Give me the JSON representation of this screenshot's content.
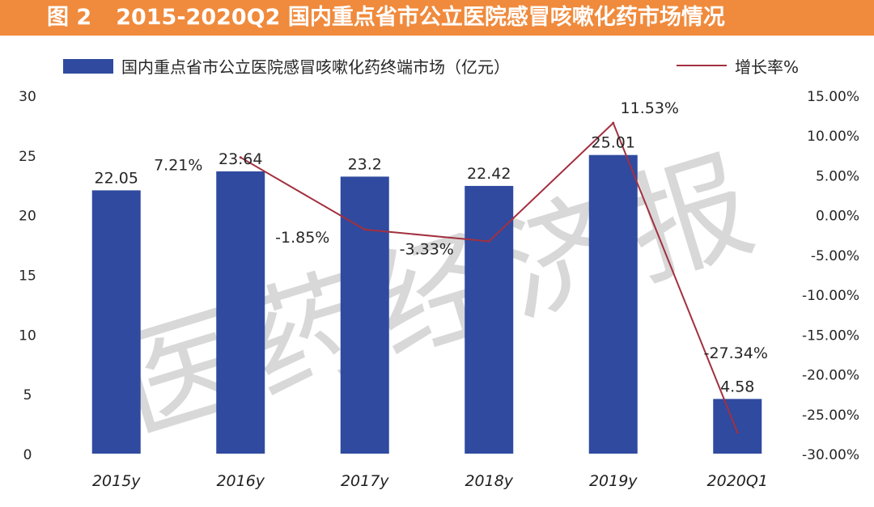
{
  "header": {
    "figure_label": "图 2",
    "title": "2015-2020Q2 国内重点省市公立医院感冒咳嗽化药市场情况"
  },
  "watermark": "医药经济报",
  "colors": {
    "title_bg": "#f08a3c",
    "bar": "#2f4a9f",
    "line": "#a3303f"
  },
  "chart_data": {
    "type": "bar",
    "categories": [
      "2015y",
      "2016y",
      "2017y",
      "2018y",
      "2019y",
      "2020Q1"
    ],
    "series": [
      {
        "name": "国内重点省市公立医院感冒咳嗽化药终端市场（亿元）",
        "type": "bar",
        "axis": "left",
        "values": [
          22.05,
          23.64,
          23.2,
          22.42,
          25.01,
          4.58
        ],
        "labels": [
          "22.05",
          "23.64",
          "23.2",
          "22.42",
          "25.01",
          "4.58"
        ]
      },
      {
        "name": "增长率%",
        "type": "line",
        "axis": "right",
        "values": [
          null,
          7.21,
          -1.85,
          -3.33,
          11.53,
          -27.34
        ],
        "labels": [
          "",
          "7.21%",
          "-1.85%",
          "-3.33%",
          "11.53%",
          "-27.34%"
        ]
      }
    ],
    "y_left": {
      "range": [
        0,
        30
      ],
      "ticks": [
        "0",
        "5",
        "10",
        "15",
        "20",
        "25",
        "30"
      ]
    },
    "y_right": {
      "range": [
        -30,
        15
      ],
      "ticks": [
        "-30.00%",
        "-25.00%",
        "-20.00%",
        "-15.00%",
        "-10.00%",
        "-5.00%",
        "0.00%",
        "5.00%",
        "10.00%",
        "15.00%"
      ]
    },
    "legend_position": "top",
    "grid": false
  }
}
